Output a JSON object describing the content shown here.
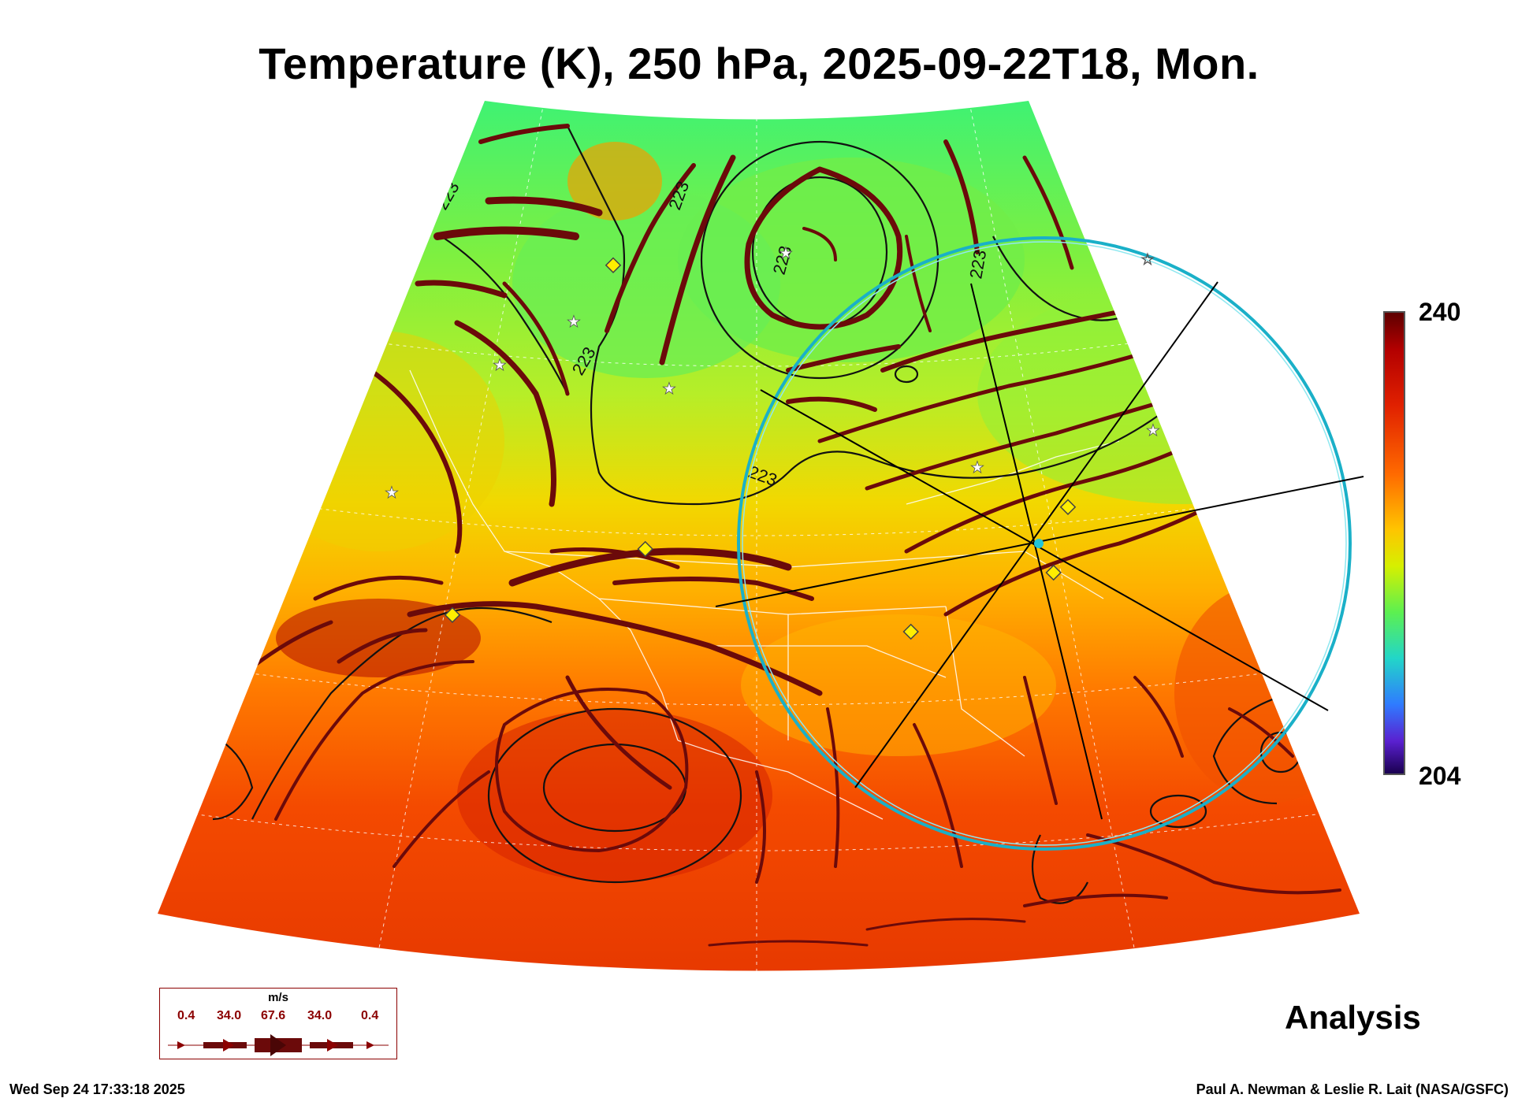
{
  "title": "Temperature (K), 250 hPa, 2025-09-22T18, Mon.",
  "colorbar": {
    "max_label": "240",
    "min_label": "204",
    "colormap": [
      "#1a0050",
      "#5a20d0",
      "#2f7bff",
      "#22d6c8",
      "#5cf050",
      "#d6f000",
      "#ffc400",
      "#ff6a00",
      "#e02000",
      "#b30000",
      "#5e0000"
    ]
  },
  "contour_labels": [
    "223",
    "223",
    "223",
    "223",
    "223",
    "223"
  ],
  "legend": {
    "unit": "m/s",
    "values": [
      "0.4",
      "34.0",
      "67.6",
      "34.0",
      "0.4"
    ]
  },
  "analysis_label": "Analysis",
  "timestamp": "Wed Sep 24 17:33:18 2025",
  "credit": "Paul A. Newman & Leslie R. Lait (NASA/GSFC)",
  "colors": {
    "streamline": "#6b0a0a",
    "circle": "#22c4d8",
    "marker_fill": "#ffee00",
    "contour": "#111111"
  }
}
